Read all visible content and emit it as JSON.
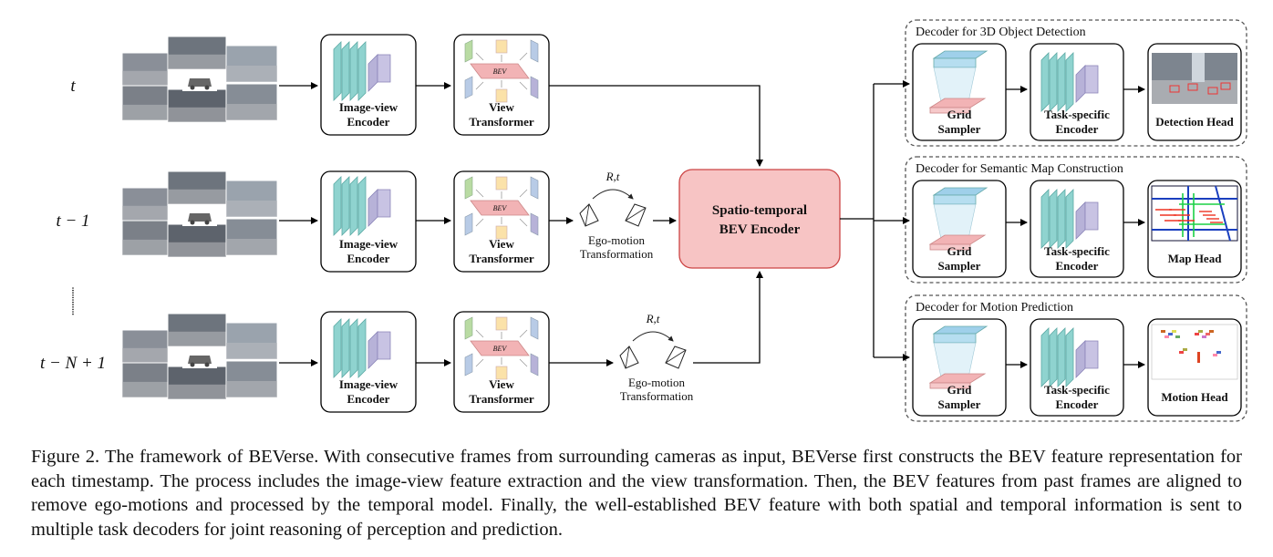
{
  "rows": [
    {
      "time_label": "t",
      "encoder_label": [
        "Image-view",
        "Encoder"
      ],
      "transformer_label": [
        "View",
        "Transformer"
      ]
    },
    {
      "time_label": "t − 1",
      "encoder_label": [
        "Image-view",
        "Encoder"
      ],
      "transformer_label": [
        "View",
        "Transformer"
      ]
    },
    {
      "time_label": "t − N + 1",
      "encoder_label": [
        "Image-view",
        "Encoder"
      ],
      "transformer_label": [
        "View",
        "Transformer"
      ]
    }
  ],
  "bev_tag": "BEV",
  "ego_motion": {
    "rt_label": "R,t",
    "label": [
      "Ego-motion",
      "Transformation"
    ]
  },
  "central_encoder": [
    "Spatio-temporal",
    "BEV Encoder"
  ],
  "decoders": [
    {
      "title": "Decoder for 3D Object Detection",
      "sampler_label": [
        "Grid",
        "Sampler"
      ],
      "encoder_label": [
        "Task-specific",
        "Encoder"
      ],
      "head_label": "Detection Head"
    },
    {
      "title": "Decoder for Semantic Map Construction",
      "sampler_label": [
        "Grid",
        "Sampler"
      ],
      "encoder_label": [
        "Task-specific",
        "Encoder"
      ],
      "head_label": "Map Head"
    },
    {
      "title": "Decoder for Motion Prediction",
      "sampler_label": [
        "Grid",
        "Sampler"
      ],
      "encoder_label": [
        "Task-specific",
        "Encoder"
      ],
      "head_label": "Motion Head"
    }
  ],
  "caption": "Figure 2. The framework of BEVerse. With consecutive frames from surrounding cameras as input, BEVerse first constructs the BEV feature representation for each timestamp. The process includes the image-view feature extraction and the view transformation. Then, the BEV features from past frames are aligned to remove ego-motions and processed by the temporal model. Finally, the well-established BEV feature with both spatial and temporal information is sent to multiple task decoders for joint reasoning of perception and prediction.",
  "colors": {
    "teal": "#8fd3cf",
    "purple": "#b7b2d8",
    "bev_pink": "#f2b3b5",
    "central_fill": "#f7c4c4",
    "sampler_blue": "#9fd0ea",
    "view_green": "#b9dba3",
    "view_yellow": "#fbe2a9",
    "view_blue": "#b8cbe6"
  }
}
